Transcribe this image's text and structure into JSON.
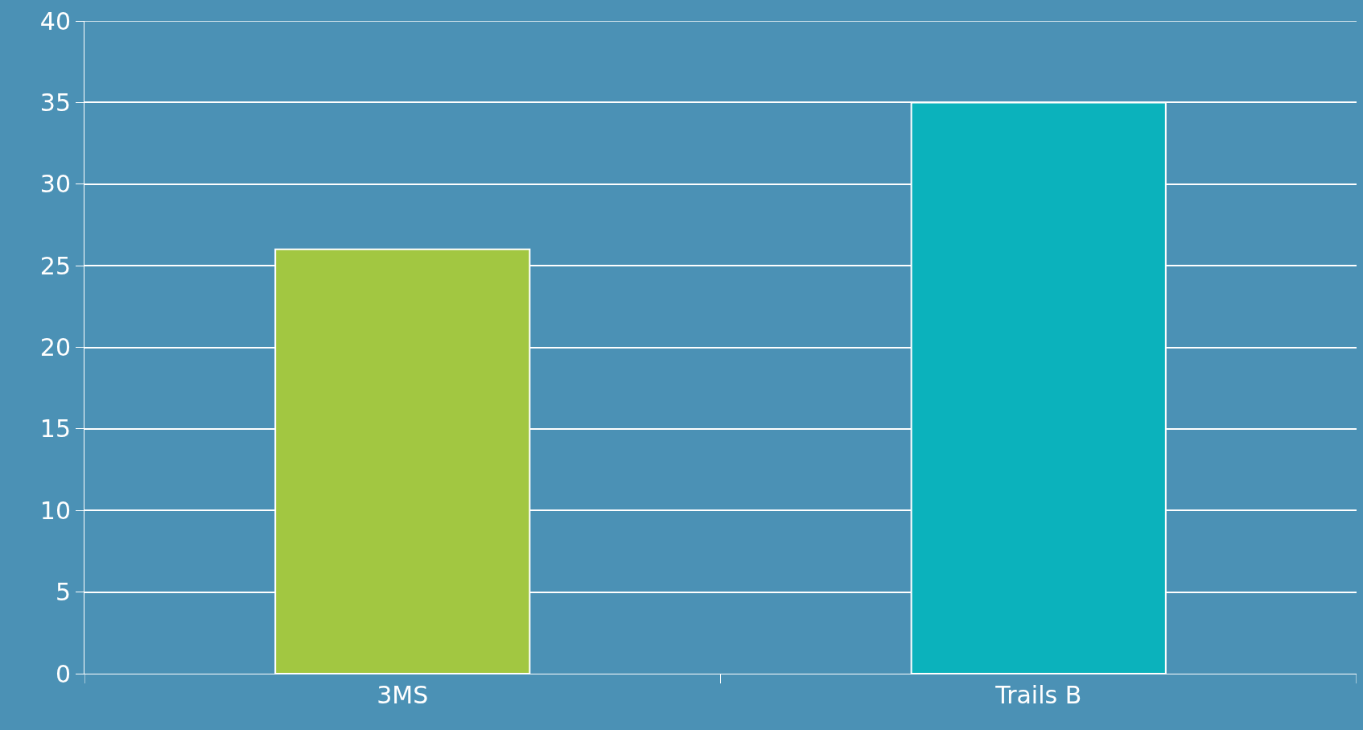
{
  "chart_data": {
    "type": "bar",
    "categories": [
      "3MS",
      "Trails B"
    ],
    "values": [
      26,
      35
    ],
    "colors": [
      "#a2c741",
      "#0bb2bc"
    ],
    "ylim": [
      0,
      40
    ],
    "yticks": [
      0,
      5,
      10,
      15,
      20,
      25,
      30,
      35,
      40
    ],
    "grid": "y"
  }
}
